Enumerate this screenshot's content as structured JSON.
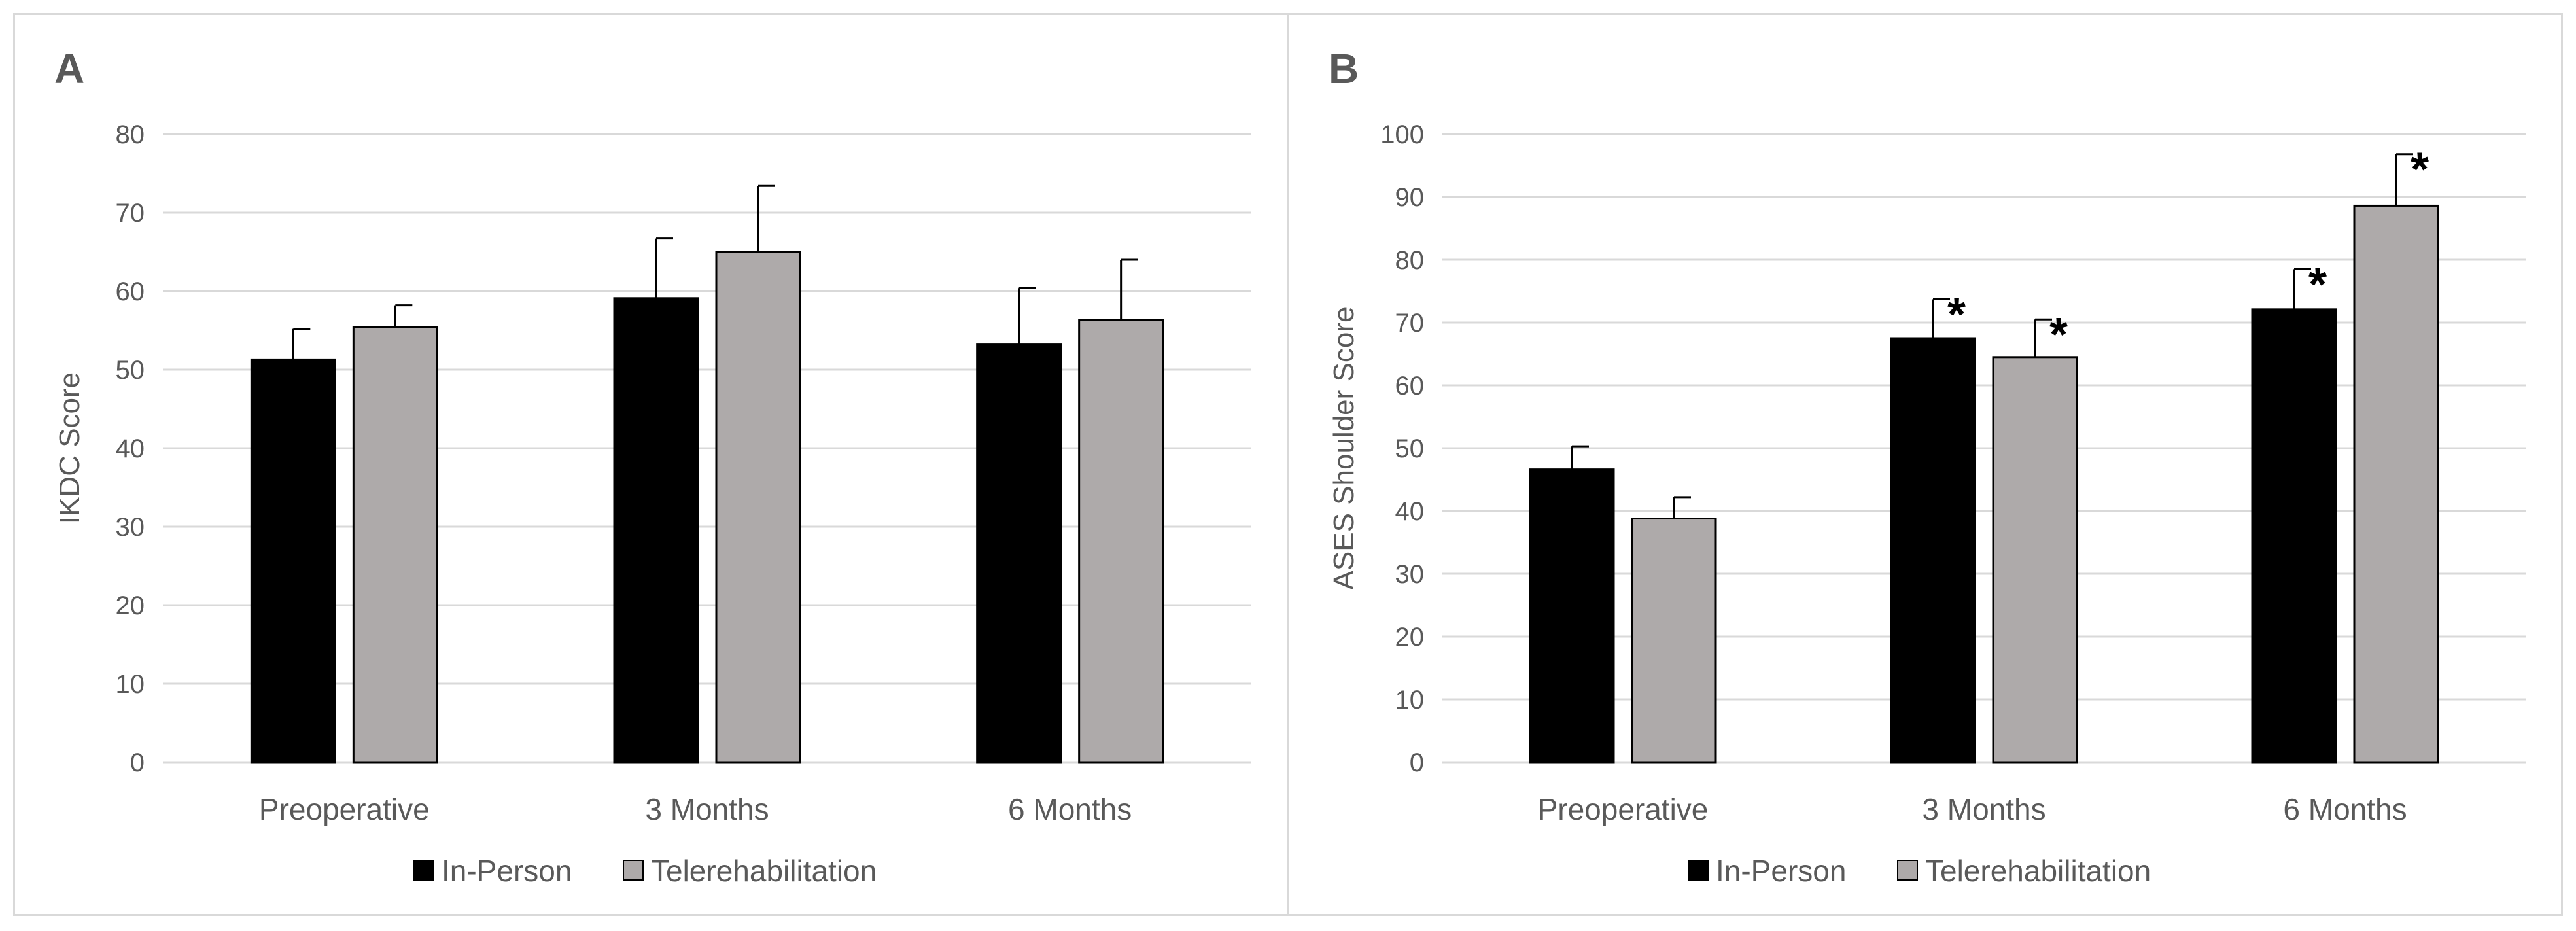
{
  "chart_data": [
    {
      "type": "bar",
      "panel_label": "A",
      "title": "",
      "xlabel": "",
      "ylabel": "IKDC Score",
      "ylim": [
        0,
        80
      ],
      "yticks": [
        "0",
        "10",
        "20",
        "30",
        "40",
        "50",
        "60",
        "70",
        "80"
      ],
      "categories": [
        "Preoperative",
        "3 Months",
        "6 Months"
      ],
      "series": [
        {
          "name": "In-Person",
          "color": "#000000",
          "values": [
            51.3,
            59.1,
            53.2
          ],
          "errors": [
            3.9,
            7.6,
            7.2
          ],
          "annotations": [
            "",
            "",
            ""
          ]
        },
        {
          "name": "Telerehabilitation",
          "color": "#aeaaaa",
          "values": [
            55.4,
            65.0,
            56.3
          ],
          "errors": [
            2.8,
            8.4,
            7.7
          ],
          "annotations": [
            "",
            "",
            ""
          ]
        }
      ],
      "grid": true,
      "legend": "bottom"
    },
    {
      "type": "bar",
      "panel_label": "B",
      "title": "",
      "xlabel": "",
      "ylabel": "ASES Shoulder Score",
      "ylim": [
        0,
        100
      ],
      "yticks": [
        "0",
        "10",
        "20",
        "30",
        "40",
        "50",
        "60",
        "70",
        "80",
        "90",
        "100"
      ],
      "categories": [
        "Preoperative",
        "3 Months",
        "6 Months"
      ],
      "series": [
        {
          "name": "In-Person",
          "color": "#000000",
          "values": [
            46.6,
            67.5,
            72.1
          ],
          "errors": [
            3.7,
            6.2,
            6.4
          ],
          "annotations": [
            "",
            "*",
            "*"
          ]
        },
        {
          "name": "Telerehabilitation",
          "color": "#aeaaaa",
          "values": [
            38.8,
            64.5,
            88.6
          ],
          "errors": [
            3.4,
            6.0,
            8.2
          ],
          "annotations": [
            "",
            "*",
            "*"
          ]
        }
      ],
      "grid": true,
      "legend": "bottom"
    }
  ]
}
